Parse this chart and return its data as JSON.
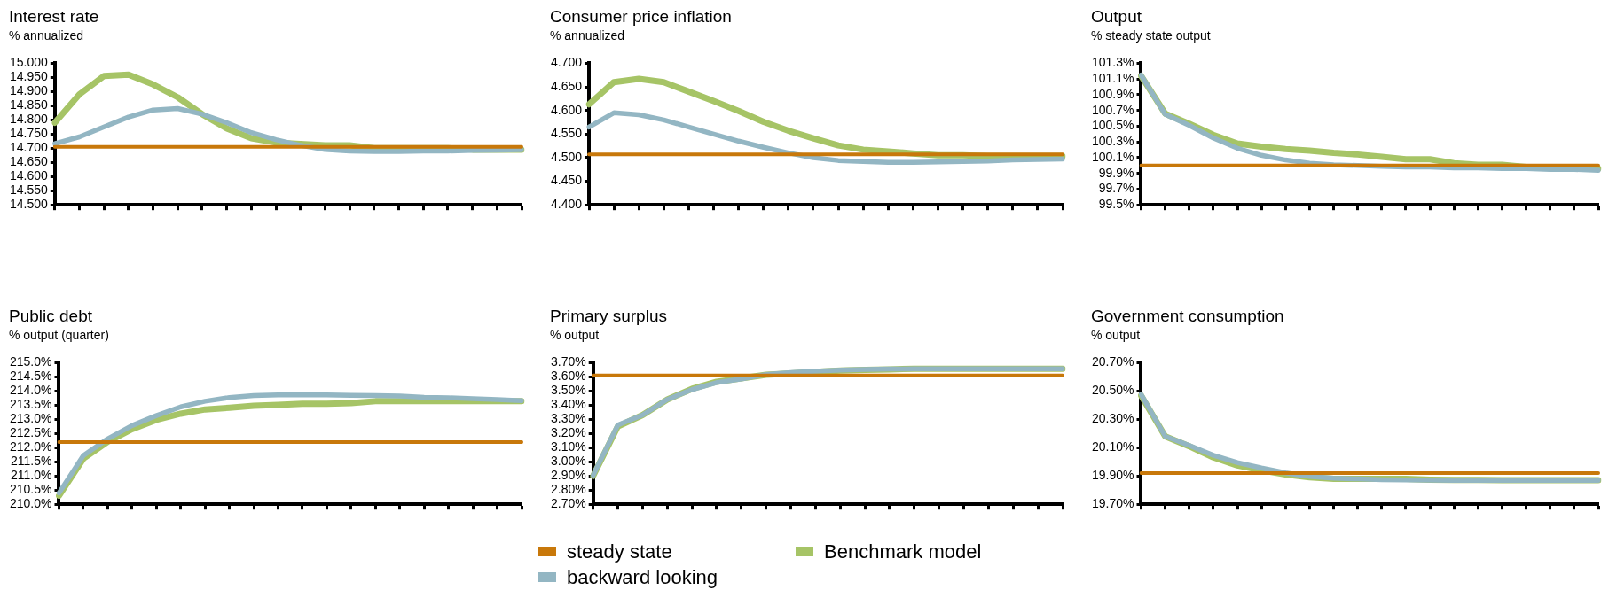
{
  "chart_data": [
    {
      "type": "line",
      "title": "Interest rate",
      "subtitle": "% annualized",
      "categories": [
        null,
        null,
        null,
        null,
        null,
        null,
        null,
        null,
        null,
        null,
        null,
        null,
        null,
        null,
        null,
        null,
        null,
        null,
        null,
        null
      ],
      "ylim": [
        14.5,
        15.0
      ],
      "yticks": [
        {
          "value": 14.5,
          "label": "14.500"
        },
        {
          "value": 14.55,
          "label": "14.550"
        },
        {
          "value": 14.6,
          "label": "14.600"
        },
        {
          "value": 14.65,
          "label": "14.650"
        },
        {
          "value": 14.7,
          "label": "14.700"
        },
        {
          "value": 14.75,
          "label": "14.750"
        },
        {
          "value": 14.8,
          "label": "14.800"
        },
        {
          "value": 14.85,
          "label": "14.850"
        },
        {
          "value": 14.9,
          "label": "14.900"
        },
        {
          "value": 14.95,
          "label": "14.950"
        },
        {
          "value": 15.0,
          "label": "15.000"
        }
      ],
      "series": [
        {
          "color": "#c8780a",
          "values": [
            14.705,
            14.705,
            14.705,
            14.705,
            14.705,
            14.705,
            14.705,
            14.705,
            14.705,
            14.705,
            14.705,
            14.705,
            14.705,
            14.705,
            14.705,
            14.705,
            14.705,
            14.705,
            14.705,
            14.705
          ]
        },
        {
          "color": "#93b6c3",
          "values": [
            14.716,
            14.74,
            14.775,
            14.81,
            14.835,
            14.84,
            14.82,
            14.79,
            14.755,
            14.73,
            14.71,
            14.695,
            14.69,
            14.688,
            14.688,
            14.69,
            14.69,
            14.692,
            14.693,
            14.695
          ]
        },
        {
          "color": "#a6c466",
          "values": [
            14.79,
            14.89,
            14.955,
            14.96,
            14.925,
            14.88,
            14.82,
            14.77,
            14.735,
            14.72,
            14.715,
            14.71,
            14.71,
            14.7,
            14.7,
            14.7,
            14.7,
            14.695,
            14.695,
            14.695
          ]
        }
      ]
    },
    {
      "type": "line",
      "title": "Consumer price inflation",
      "subtitle": "% annualized",
      "categories": [
        null,
        null,
        null,
        null,
        null,
        null,
        null,
        null,
        null,
        null,
        null,
        null,
        null,
        null,
        null,
        null,
        null,
        null,
        null,
        null
      ],
      "ylim": [
        4.4,
        4.7
      ],
      "yticks": [
        {
          "value": 4.4,
          "label": "4.400"
        },
        {
          "value": 4.45,
          "label": "4.450"
        },
        {
          "value": 4.5,
          "label": "4.500"
        },
        {
          "value": 4.55,
          "label": "4.550"
        },
        {
          "value": 4.6,
          "label": "4.600"
        },
        {
          "value": 4.65,
          "label": "4.650"
        },
        {
          "value": 4.7,
          "label": "4.700"
        }
      ],
      "series": [
        {
          "color": "#c8780a",
          "values": [
            4.507,
            4.507,
            4.507,
            4.507,
            4.507,
            4.507,
            4.507,
            4.507,
            4.507,
            4.507,
            4.507,
            4.507,
            4.507,
            4.507,
            4.507,
            4.507,
            4.507,
            4.507,
            4.507,
            4.507
          ]
        },
        {
          "color": "#93b6c3",
          "values": [
            4.565,
            4.595,
            4.591,
            4.58,
            4.565,
            4.55,
            4.535,
            4.522,
            4.51,
            4.5,
            4.494,
            4.492,
            4.49,
            4.49,
            4.491,
            4.492,
            4.493,
            4.495,
            4.496,
            4.497
          ]
        },
        {
          "color": "#a6c466",
          "values": [
            4.613,
            4.66,
            4.667,
            4.66,
            4.64,
            4.62,
            4.599,
            4.576,
            4.557,
            4.541,
            4.526,
            4.517,
            4.513,
            4.509,
            4.505,
            4.505,
            4.503,
            4.503,
            4.503,
            4.503
          ]
        }
      ]
    },
    {
      "type": "line",
      "title": "Output",
      "subtitle": "% steady state output",
      "categories": [
        null,
        null,
        null,
        null,
        null,
        null,
        null,
        null,
        null,
        null,
        null,
        null,
        null,
        null,
        null,
        null,
        null,
        null,
        null,
        null
      ],
      "ylim": [
        99.5,
        101.3
      ],
      "yticks": [
        {
          "value": 99.5,
          "label": "99.5%"
        },
        {
          "value": 99.7,
          "label": "99.7%"
        },
        {
          "value": 99.9,
          "label": "99.9%"
        },
        {
          "value": 100.1,
          "label": "100.1%"
        },
        {
          "value": 100.3,
          "label": "100.3%"
        },
        {
          "value": 100.5,
          "label": "100.5%"
        },
        {
          "value": 100.7,
          "label": "100.7%"
        },
        {
          "value": 100.9,
          "label": "100.9%"
        },
        {
          "value": 101.1,
          "label": "101.1%"
        },
        {
          "value": 101.3,
          "label": "101.3%"
        }
      ],
      "series": [
        {
          "color": "#c8780a",
          "values": [
            100.0,
            100.0,
            100.0,
            100.0,
            100.0,
            100.0,
            100.0,
            100.0,
            100.0,
            100.0,
            100.0,
            100.0,
            100.0,
            100.0,
            100.0,
            100.0,
            100.0,
            100.0,
            100.0,
            100.0
          ]
        },
        {
          "color": "#93b6c3",
          "values": [
            101.15,
            100.65,
            100.51,
            100.35,
            100.22,
            100.13,
            100.07,
            100.03,
            100.01,
            100.0,
            99.99,
            99.98,
            99.98,
            99.97,
            99.97,
            99.96,
            99.96,
            99.95,
            99.95,
            99.94
          ]
        },
        {
          "color": "#a6c466",
          "values": [
            101.14,
            100.66,
            100.53,
            100.39,
            100.28,
            100.24,
            100.21,
            100.19,
            100.16,
            100.14,
            100.11,
            100.08,
            100.08,
            100.03,
            100.01,
            100.01,
            99.98,
            99.98,
            99.96,
            99.96
          ]
        }
      ]
    },
    {
      "type": "line",
      "title": "Public debt",
      "subtitle": "% output (quarter)",
      "categories": [
        null,
        null,
        null,
        null,
        null,
        null,
        null,
        null,
        null,
        null,
        null,
        null,
        null,
        null,
        null,
        null,
        null,
        null,
        null,
        null
      ],
      "ylim": [
        210.0,
        215.0
      ],
      "yticks": [
        {
          "value": 210,
          "label": "210.0%"
        },
        {
          "value": 210.5,
          "label": "210.5%"
        },
        {
          "value": 211,
          "label": "211.0%"
        },
        {
          "value": 211.5,
          "label": "211.5%"
        },
        {
          "value": 212,
          "label": "212.0%"
        },
        {
          "value": 212.5,
          "label": "212.5%"
        },
        {
          "value": 213,
          "label": "213.0%"
        },
        {
          "value": 213.5,
          "label": "213.5%"
        },
        {
          "value": 214,
          "label": "214.0%"
        },
        {
          "value": 214.5,
          "label": "214.5%"
        },
        {
          "value": 215,
          "label": "215.0%"
        }
      ],
      "series": [
        {
          "color": "#c8780a",
          "values": [
            212.2,
            212.2,
            212.2,
            212.2,
            212.2,
            212.2,
            212.2,
            212.2,
            212.2,
            212.2,
            212.2,
            212.2,
            212.2,
            212.2,
            212.2,
            212.2,
            212.2,
            212.2,
            212.2,
            212.2
          ]
        },
        {
          "color": "#93b6c3",
          "values": [
            210.4,
            211.72,
            212.31,
            212.78,
            213.13,
            213.44,
            213.64,
            213.77,
            213.84,
            213.86,
            213.86,
            213.86,
            213.85,
            213.84,
            213.82,
            213.78,
            213.76,
            213.73,
            213.7,
            213.66
          ]
        },
        {
          "color": "#a6c466",
          "values": [
            210.3,
            211.61,
            212.21,
            212.65,
            212.98,
            213.2,
            213.35,
            213.41,
            213.48,
            213.51,
            213.55,
            213.55,
            213.57,
            213.64,
            213.64,
            213.64,
            213.64,
            213.64,
            213.64,
            213.64
          ]
        }
      ]
    },
    {
      "type": "line",
      "title": "Primary surplus",
      "subtitle": "% output",
      "legend": "bottom",
      "categories": [
        null,
        null,
        null,
        null,
        null,
        null,
        null,
        null,
        null,
        null,
        null,
        null,
        null,
        null,
        null,
        null,
        null,
        null,
        null,
        null
      ],
      "ylim": [
        2.7,
        3.7
      ],
      "yticks": [
        {
          "value": 2.7,
          "label": "2.70%"
        },
        {
          "value": 2.8,
          "label": "2.80%"
        },
        {
          "value": 2.9,
          "label": "2.90%"
        },
        {
          "value": 3.0,
          "label": "3.00%"
        },
        {
          "value": 3.1,
          "label": "3.10%"
        },
        {
          "value": 3.2,
          "label": "3.20%"
        },
        {
          "value": 3.3,
          "label": "3.30%"
        },
        {
          "value": 3.4,
          "label": "3.40%"
        },
        {
          "value": 3.5,
          "label": "3.50%"
        },
        {
          "value": 3.6,
          "label": "3.60%"
        },
        {
          "value": 3.7,
          "label": "3.70%"
        }
      ],
      "series": [
        {
          "name": "steady state",
          "color": "#c8780a",
          "values": [
            3.61,
            3.61,
            3.61,
            3.61,
            3.61,
            3.61,
            3.61,
            3.61,
            3.61,
            3.61,
            3.61,
            3.61,
            3.61,
            3.61,
            3.61,
            3.61,
            3.61,
            3.61,
            3.61,
            3.61
          ]
        },
        {
          "name": "backward looking",
          "color": "#93b6c3",
          "values": [
            2.905,
            3.26,
            3.33,
            3.44,
            3.51,
            3.56,
            3.585,
            3.617,
            3.63,
            3.64,
            3.647,
            3.652,
            3.655,
            3.657,
            3.657,
            3.657,
            3.657,
            3.657,
            3.657,
            3.657
          ]
        },
        {
          "name": "Benchmark model",
          "color": "#a6c466",
          "values": [
            2.9,
            3.25,
            3.33,
            3.44,
            3.515,
            3.565,
            3.59,
            3.615,
            3.625,
            3.635,
            3.645,
            3.65,
            3.653,
            3.657,
            3.657,
            3.657,
            3.657,
            3.657,
            3.657,
            3.657
          ]
        }
      ]
    },
    {
      "type": "line",
      "title": "Government consumption",
      "subtitle": "% output",
      "categories": [
        null,
        null,
        null,
        null,
        null,
        null,
        null,
        null,
        null,
        null,
        null,
        null,
        null,
        null,
        null,
        null,
        null,
        null,
        null,
        null
      ],
      "ylim": [
        19.7,
        20.7
      ],
      "yticks": [
        {
          "value": 19.7,
          "label": "19.70%"
        },
        {
          "value": 19.9,
          "label": "19.90%"
        },
        {
          "value": 20.1,
          "label": "20.10%"
        },
        {
          "value": 20.3,
          "label": "20.30%"
        },
        {
          "value": 20.5,
          "label": "20.50%"
        },
        {
          "value": 20.7,
          "label": "20.70%"
        }
      ],
      "series": [
        {
          "color": "#c8780a",
          "values": [
            19.92,
            19.92,
            19.92,
            19.92,
            19.92,
            19.92,
            19.92,
            19.92,
            19.92,
            19.92,
            19.92,
            19.92,
            19.92,
            19.92,
            19.92,
            19.92,
            19.92,
            19.92,
            19.92,
            19.92
          ]
        },
        {
          "color": "#93b6c3",
          "values": [
            20.476,
            20.18,
            20.116,
            20.046,
            19.995,
            19.956,
            19.922,
            19.897,
            19.884,
            19.879,
            19.874,
            19.871,
            19.87,
            19.869,
            19.869,
            19.869,
            19.869,
            19.869,
            19.869,
            19.869
          ]
        },
        {
          "color": "#a6c466",
          "values": [
            20.468,
            20.18,
            20.11,
            20.031,
            19.974,
            19.94,
            19.91,
            19.89,
            19.879,
            19.879,
            19.879,
            19.879,
            19.874,
            19.871,
            19.871,
            19.87,
            19.87,
            19.87,
            19.87,
            19.87
          ]
        }
      ]
    }
  ]
}
